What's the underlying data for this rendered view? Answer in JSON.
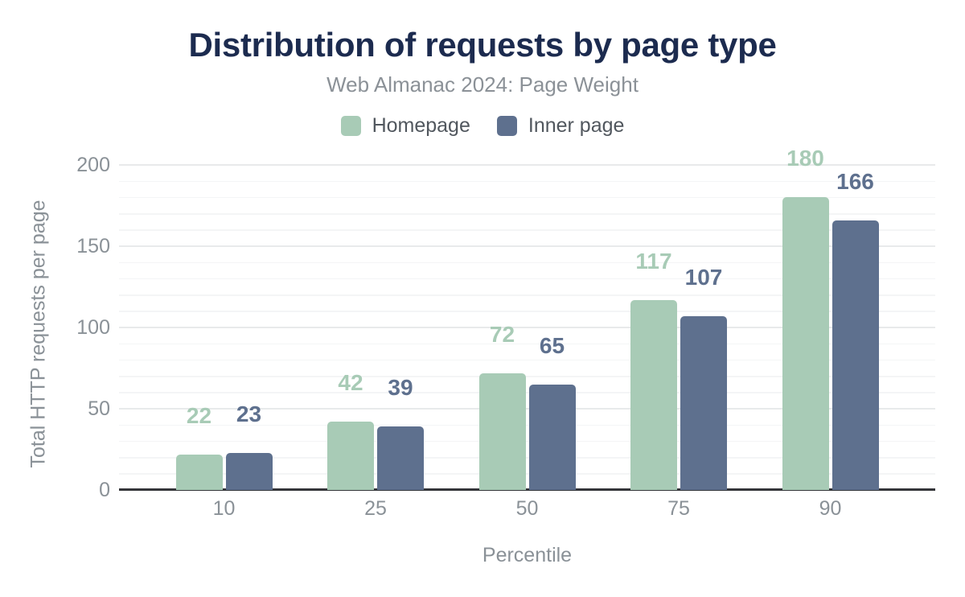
{
  "chart": {
    "title": "Distribution of requests by page type",
    "subtitle": "Web Almanac 2024: Page Weight"
  },
  "chart_data": {
    "type": "bar",
    "title": "Distribution of requests by page type",
    "subtitle": "Web Almanac 2024: Page Weight",
    "categories": [
      "10",
      "25",
      "50",
      "75",
      "90"
    ],
    "series": [
      {
        "name": "Homepage",
        "color": "#a8cbb6",
        "values": [
          22,
          42,
          72,
          117,
          180
        ]
      },
      {
        "name": "Inner page",
        "color": "#5e708e",
        "values": [
          23,
          39,
          65,
          107,
          166
        ]
      }
    ],
    "xlabel": "Percentile",
    "ylabel": "Total HTTP requests per page",
    "ylim": [
      0,
      200
    ],
    "y_major_ticks": [
      0,
      50,
      100,
      150,
      200
    ],
    "y_minor_step": 10,
    "grid": true,
    "legend_position": "top",
    "value_labels": "above bars, colored same as series"
  },
  "colors": {
    "title": "#1c2b4f",
    "subtitle": "#8b9197",
    "tick_labels": "#8a9197",
    "legend_text": "#51575e",
    "grid_major": "#e8eaeb",
    "grid_minor": "#f4f5f6",
    "axis_line": "#343539",
    "background": "#ffffff"
  }
}
